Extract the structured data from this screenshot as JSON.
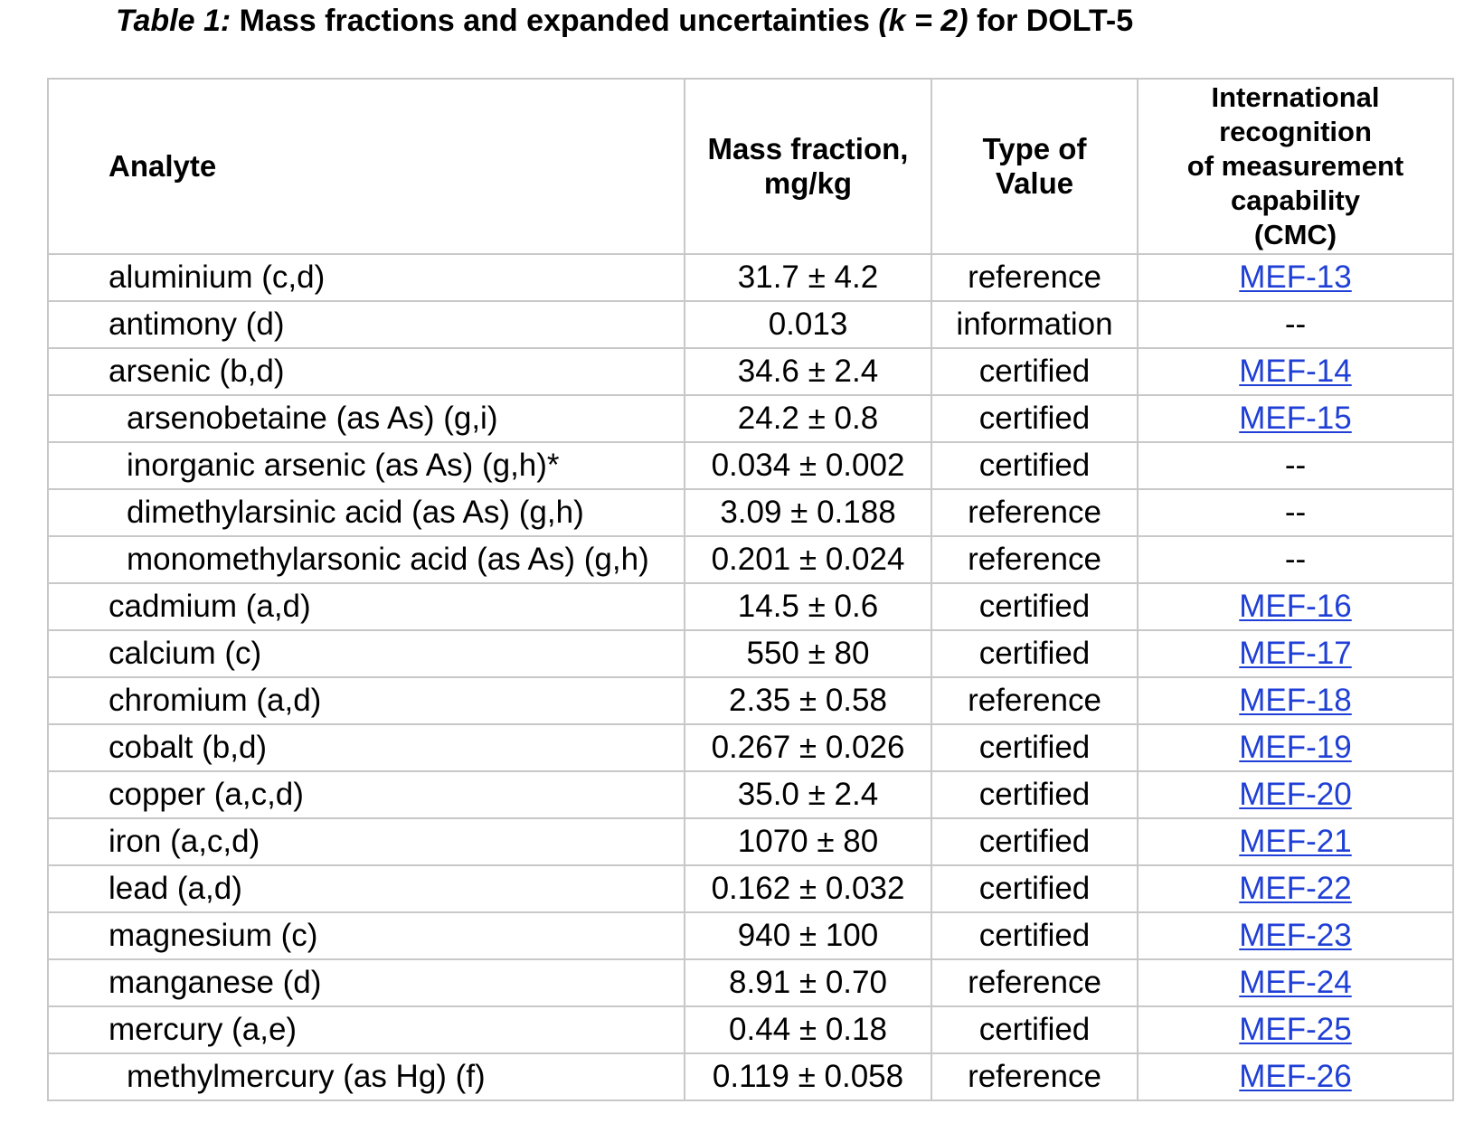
{
  "caption": {
    "label": "Table 1:",
    "text_before_k": " Mass fractions and expanded uncertainties ",
    "k_text": "(k = 2)",
    "text_after_k": " for DOLT-5"
  },
  "headers": {
    "analyte": "Analyte",
    "mass_fraction_line1": "Mass fraction,",
    "mass_fraction_line2": "mg/kg",
    "type_line1": "Type of",
    "type_line2": "Value",
    "cmc_line1": "International",
    "cmc_line2": "recognition",
    "cmc_line3": "of measurement",
    "cmc_line4": "capability",
    "cmc_line5": "(CMC)"
  },
  "rows": [
    {
      "analyte": "aluminium (c,d)",
      "indent": false,
      "mass_fraction": "31.7 ± 4.2",
      "type": "reference",
      "cmc": "MEF-13",
      "cmc_is_link": true
    },
    {
      "analyte": "antimony (d)",
      "indent": false,
      "mass_fraction": "0.013",
      "type": "information",
      "cmc": "--",
      "cmc_is_link": false
    },
    {
      "analyte": "arsenic (b,d)",
      "indent": false,
      "mass_fraction": "34.6 ± 2.4",
      "type": "certified",
      "cmc": "MEF-14",
      "cmc_is_link": true
    },
    {
      "analyte": "arsenobetaine (as As) (g,i)",
      "indent": true,
      "mass_fraction": "24.2 ± 0.8",
      "type": "certified",
      "cmc": "MEF-15",
      "cmc_is_link": true
    },
    {
      "analyte": "inorganic arsenic (as As) (g,h)*",
      "indent": true,
      "mass_fraction": "0.034 ± 0.002",
      "type": "certified",
      "cmc": "--",
      "cmc_is_link": false
    },
    {
      "analyte": "dimethylarsinic acid (as As) (g,h)",
      "indent": true,
      "mass_fraction": "3.09 ± 0.188",
      "type": "reference",
      "cmc": "--",
      "cmc_is_link": false
    },
    {
      "analyte": "monomethylarsonic acid (as As) (g,h)",
      "indent": true,
      "mass_fraction": "0.201 ± 0.024",
      "type": "reference",
      "cmc": "--",
      "cmc_is_link": false
    },
    {
      "analyte": "cadmium (a,d)",
      "indent": false,
      "mass_fraction": "14.5 ± 0.6",
      "type": "certified",
      "cmc": "MEF-16",
      "cmc_is_link": true
    },
    {
      "analyte": "calcium (c)",
      "indent": false,
      "mass_fraction": "550 ± 80",
      "type": "certified",
      "cmc": "MEF-17",
      "cmc_is_link": true
    },
    {
      "analyte": "chromium (a,d)",
      "indent": false,
      "mass_fraction": "2.35 ± 0.58",
      "type": "reference",
      "cmc": "MEF-18",
      "cmc_is_link": true
    },
    {
      "analyte": "cobalt (b,d)",
      "indent": false,
      "mass_fraction": "0.267 ± 0.026",
      "type": "certified",
      "cmc": "MEF-19",
      "cmc_is_link": true
    },
    {
      "analyte": "copper (a,c,d)",
      "indent": false,
      "mass_fraction": "35.0 ± 2.4",
      "type": "certified",
      "cmc": "MEF-20",
      "cmc_is_link": true
    },
    {
      "analyte": "iron (a,c,d)",
      "indent": false,
      "mass_fraction": "1070 ± 80",
      "type": "certified",
      "cmc": "MEF-21",
      "cmc_is_link": true
    },
    {
      "analyte": "lead (a,d)",
      "indent": false,
      "mass_fraction": "0.162 ± 0.032",
      "type": "certified",
      "cmc": "MEF-22",
      "cmc_is_link": true
    },
    {
      "analyte": "magnesium (c)",
      "indent": false,
      "mass_fraction": "940 ± 100",
      "type": "certified",
      "cmc": "MEF-23",
      "cmc_is_link": true
    },
    {
      "analyte": "manganese (d)",
      "indent": false,
      "mass_fraction": "8.91 ± 0.70",
      "type": "reference",
      "cmc": "MEF-24",
      "cmc_is_link": true
    },
    {
      "analyte": "mercury (a,e)",
      "indent": false,
      "mass_fraction": "0.44 ± 0.18",
      "type": "certified",
      "cmc": "MEF-25",
      "cmc_is_link": true
    },
    {
      "analyte": "methylmercury (as Hg) (f)",
      "indent": true,
      "mass_fraction": "0.119 ± 0.058",
      "type": "reference",
      "cmc": "MEF-26",
      "cmc_is_link": true
    }
  ],
  "colors": {
    "link": "#1f3fd6",
    "border": "#c8c8c8",
    "text": "#000000"
  }
}
